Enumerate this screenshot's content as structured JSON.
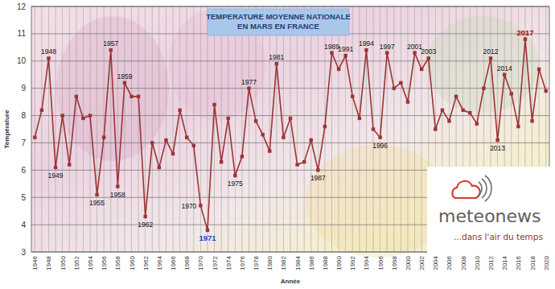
{
  "chart_data": {
    "type": "line",
    "title": "TEMPERATURE MOYENNE NATIONALE\nEN MARS EN FRANCE",
    "x_label": "Année",
    "y_label": "Température",
    "x": [
      1946,
      1947,
      1948,
      1949,
      1950,
      1951,
      1952,
      1953,
      1954,
      1955,
      1956,
      1957,
      1958,
      1959,
      1960,
      1961,
      1962,
      1963,
      1964,
      1965,
      1966,
      1967,
      1968,
      1969,
      1970,
      1971,
      1972,
      1973,
      1974,
      1975,
      1976,
      1977,
      1978,
      1979,
      1980,
      1981,
      1982,
      1983,
      1984,
      1985,
      1986,
      1987,
      1988,
      1989,
      1990,
      1991,
      1992,
      1993,
      1994,
      1995,
      1996,
      1997,
      1998,
      1999,
      2000,
      2001,
      2002,
      2003,
      2004,
      2005,
      2006,
      2007,
      2008,
      2009,
      2010,
      2011,
      2012,
      2013,
      2014,
      2015,
      2016,
      2017,
      2018,
      2019,
      2020
    ],
    "values": [
      7.2,
      8.2,
      10.1,
      6.1,
      8.0,
      6.2,
      8.7,
      7.9,
      8.0,
      5.1,
      7.2,
      10.4,
      5.4,
      9.2,
      8.7,
      8.7,
      4.3,
      7.0,
      6.1,
      7.1,
      6.6,
      8.2,
      7.2,
      6.9,
      4.7,
      3.8,
      8.4,
      6.3,
      7.9,
      5.8,
      6.5,
      9.0,
      7.8,
      7.3,
      6.7,
      9.9,
      7.2,
      7.9,
      6.2,
      6.3,
      7.1,
      6.0,
      7.6,
      10.3,
      9.7,
      10.2,
      8.7,
      7.9,
      10.4,
      7.5,
      7.2,
      10.3,
      9.0,
      9.2,
      8.5,
      10.3,
      9.7,
      10.1,
      7.5,
      8.2,
      7.8,
      8.7,
      8.2,
      8.1,
      7.7,
      9.0,
      10.1,
      7.1,
      9.5,
      8.8,
      7.6,
      10.8,
      7.8,
      9.7,
      8.9
    ],
    "color": "#9b3535",
    "marker": "square",
    "line_style": "solid",
    "xlim": [
      1945.5,
      2020.5
    ],
    "xticks": [
      1946,
      1948,
      1950,
      1952,
      1954,
      1956,
      1958,
      1960,
      1962,
      1964,
      1966,
      1968,
      1970,
      1972,
      1974,
      1976,
      1978,
      1980,
      1982,
      1984,
      1986,
      1988,
      1990,
      1992,
      1994,
      1996,
      1998,
      2000,
      2002,
      2004,
      2006,
      2008,
      2010,
      2012,
      2014,
      2016,
      2018,
      2020
    ],
    "ylim": [
      3,
      12
    ],
    "yticks": [
      3,
      4,
      5,
      6,
      7,
      8,
      9,
      10,
      11,
      12
    ],
    "grid": true,
    "annotations": [
      {
        "x": 1948
      },
      {
        "x": 1949
      },
      {
        "x": 1955
      },
      {
        "x": 1957
      },
      {
        "x": 1958
      },
      {
        "x": 1959
      },
      {
        "x": 1962
      },
      {
        "x": 1970
      },
      {
        "x": 1971,
        "color": "#1f3fbf"
      },
      {
        "x": 1975
      },
      {
        "x": 1977
      },
      {
        "x": 1981
      },
      {
        "x": 1987
      },
      {
        "x": 1989
      },
      {
        "x": 1991
      },
      {
        "x": 1994
      },
      {
        "x": 1996
      },
      {
        "x": 1997
      },
      {
        "x": 2001
      },
      {
        "x": 2003
      },
      {
        "x": 2012
      },
      {
        "x": 2013
      },
      {
        "x": 2014
      },
      {
        "x": 2017,
        "color": "#c00000"
      }
    ]
  },
  "logo": {
    "name": "meteonews",
    "tagline": "...dans l'air du temps"
  }
}
